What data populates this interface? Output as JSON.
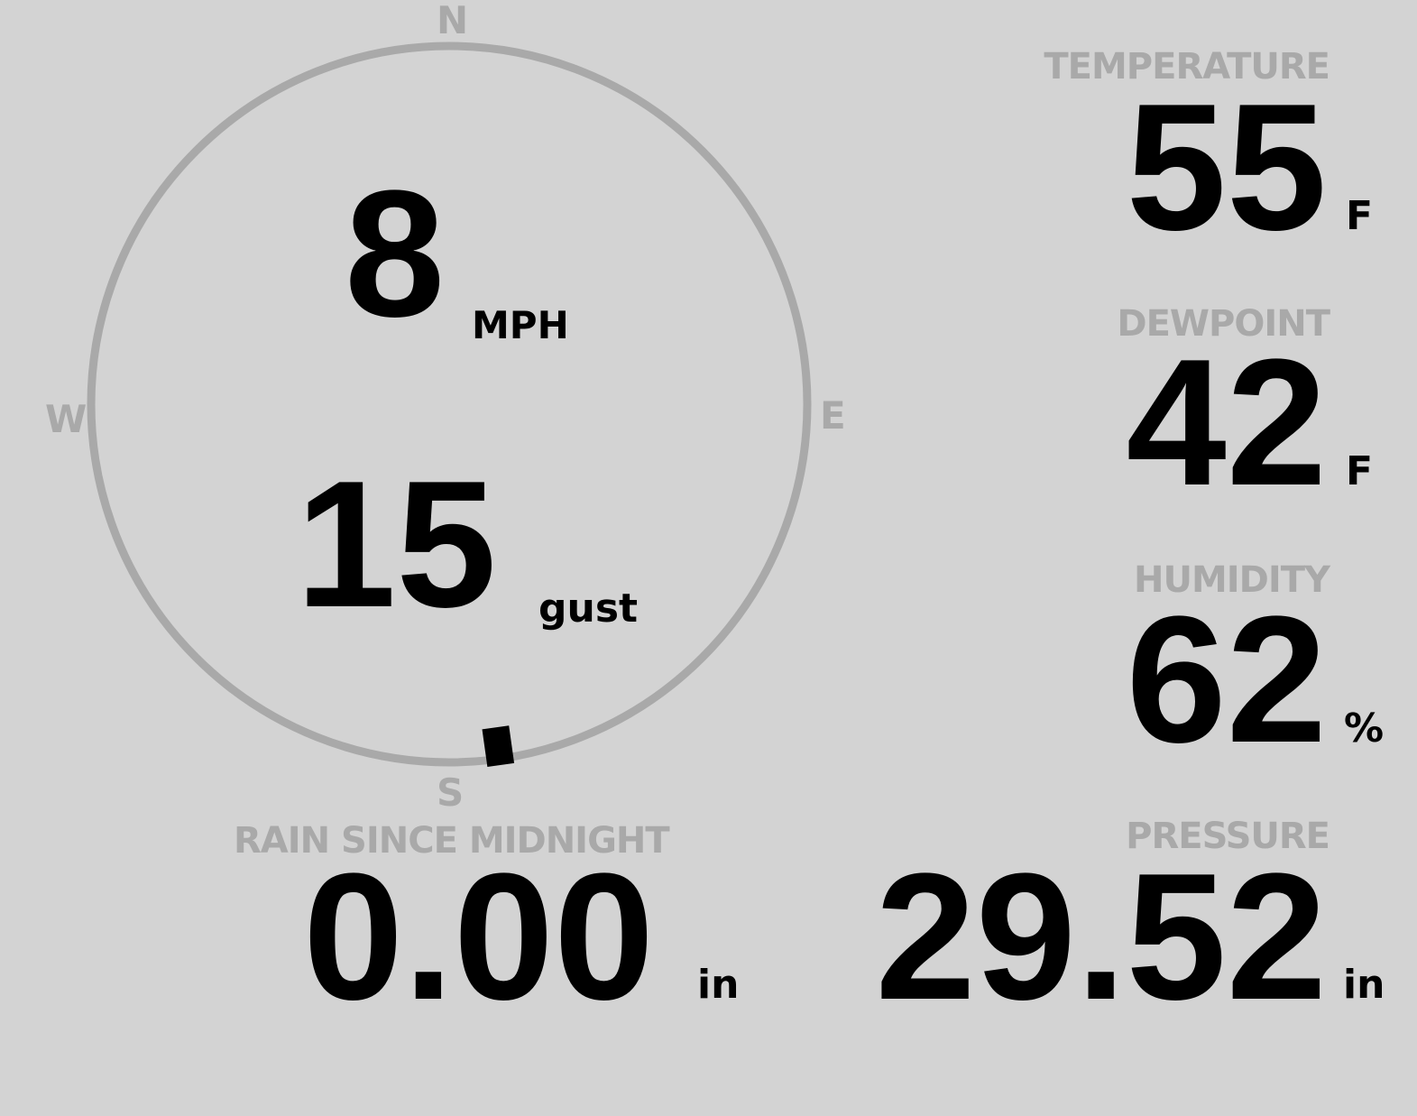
{
  "colors": {
    "background": "#d3d3d3",
    "label": "#a9a9a9",
    "value": "#000000"
  },
  "wind": {
    "compass": {
      "n": "N",
      "e": "E",
      "s": "S",
      "w": "W"
    },
    "direction_degrees": 172,
    "speed": "8",
    "speed_unit": "MPH",
    "gust": "15",
    "gust_unit": "gust"
  },
  "rain": {
    "label": "RAIN SINCE MIDNIGHT",
    "value": "0.00",
    "unit": "in"
  },
  "temperature": {
    "label": "TEMPERATURE",
    "value": "55",
    "unit": "F"
  },
  "dewpoint": {
    "label": "DEWPOINT",
    "value": "42",
    "unit": "F"
  },
  "humidity": {
    "label": "HUMIDITY",
    "value": "62",
    "unit": "%"
  },
  "pressure": {
    "label": "PRESSURE",
    "value": "29.52",
    "unit": "in"
  }
}
